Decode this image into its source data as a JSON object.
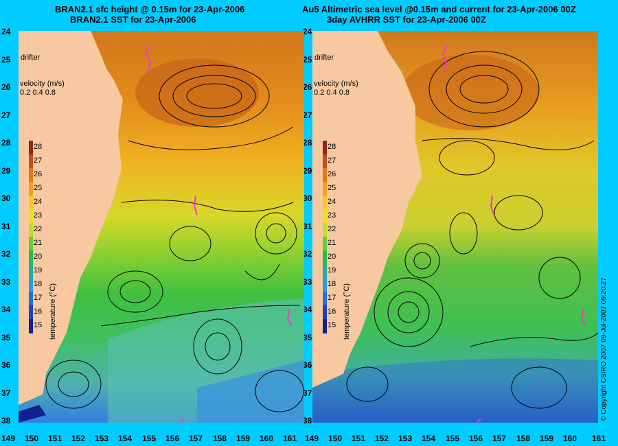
{
  "left_panel": {
    "title_line1": "BRAN2.1 sfc height @ 0.15m for 23-Apr-2006",
    "title_line2": "BRAN2.1 SST for 23-Apr-2006"
  },
  "right_panel": {
    "title_line1": "Au5 Altimetric sea level  @0.15m and current for 23-Apr-2006 00Z",
    "title_line2": "3day AVHRR SST for 23-Apr-2006 00Z"
  },
  "legend": {
    "drifter": "drifter",
    "velocity_title": "velocity (m/s)",
    "velocity_scale": "0.2 0.4 0.8",
    "temperature_title": "temperature (°C)"
  },
  "colorbar": {
    "labels": [
      "28",
      "27",
      "26",
      "25",
      "24",
      "23",
      "22",
      "21",
      "20",
      "19",
      "18",
      "17",
      "16",
      "15"
    ],
    "colors": [
      "#8b2a10",
      "#c0501a",
      "#e07a18",
      "#f0a020",
      "#f6c820",
      "#e8e020",
      "#c0e020",
      "#60d030",
      "#20c040",
      "#20b0a0",
      "#20a0e0",
      "#2070e0",
      "#2040c0",
      "#102090"
    ]
  },
  "y_axis_labels": [
    "24",
    "25",
    "26",
    "27",
    "28",
    "29",
    "30",
    "31",
    "32",
    "33",
    "34",
    "35",
    "36",
    "37",
    "38"
  ],
  "x_axis_labels": [
    "149",
    "150",
    "151",
    "152",
    "153",
    "154",
    "155",
    "156",
    "157",
    "158",
    "159",
    "160",
    "161"
  ],
  "copyright": "© Copyright CSIRO 2007   09-Jul-2007 09:20:27",
  "colors": {
    "background": "#00ccff",
    "land": "#f8c8a0",
    "drifter": "#ff33cc"
  }
}
